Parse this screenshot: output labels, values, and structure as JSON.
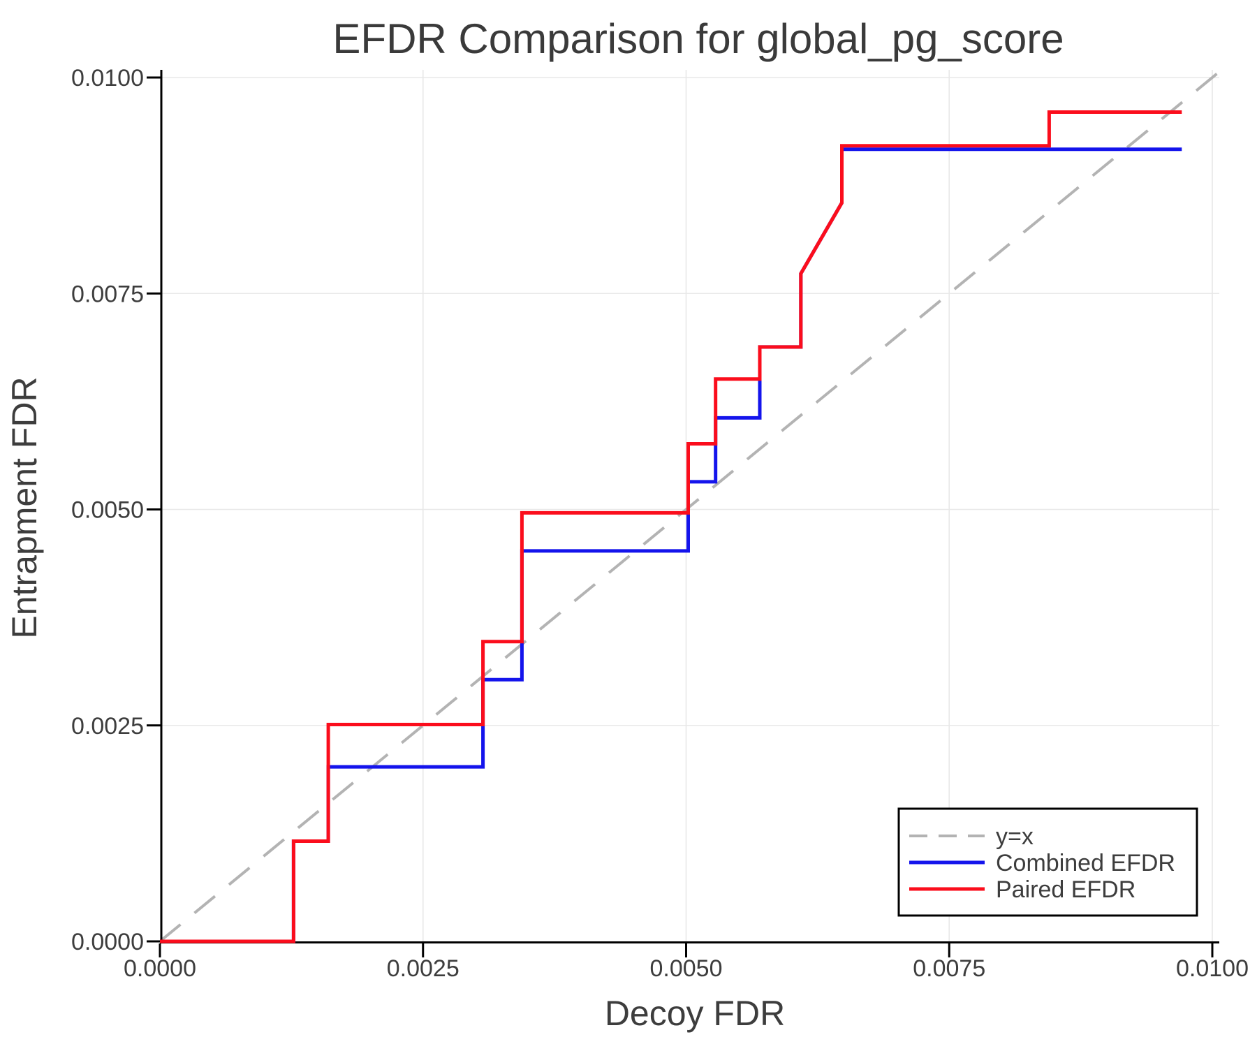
{
  "chart_data": {
    "type": "line",
    "title": "EFDR Comparison for global_pg_score",
    "xlabel": "Decoy FDR",
    "ylabel": "Entrapment FDR",
    "xlim": [
      0.0,
      0.01
    ],
    "ylim": [
      0.0,
      0.01
    ],
    "grid": true,
    "legend_position": "lower right",
    "xticks": [
      {
        "value": 0.0,
        "label": "0.0000"
      },
      {
        "value": 0.0025,
        "label": "0.0025"
      },
      {
        "value": 0.005,
        "label": "0.0050"
      },
      {
        "value": 0.0075,
        "label": "0.0075"
      },
      {
        "value": 0.01,
        "label": "0.0100"
      }
    ],
    "yticks": [
      {
        "value": 0.0,
        "label": "0.0000"
      },
      {
        "value": 0.0025,
        "label": "0.0025"
      },
      {
        "value": 0.005,
        "label": "0.0050"
      },
      {
        "value": 0.0075,
        "label": "0.0075"
      },
      {
        "value": 0.01,
        "label": "0.0100"
      }
    ],
    "identity_line": {
      "name": "y=x",
      "color": "#b3b3b3",
      "style": "dashed",
      "points": [
        [
          0.0,
          0.0
        ],
        [
          0.0101,
          0.0101
        ]
      ]
    },
    "series": [
      {
        "name": "Combined EFDR",
        "color": "#1414ec",
        "style": "solid",
        "points": [
          [
            0.0,
            0.0
          ],
          [
            0.00127,
            0.0
          ],
          [
            0.00127,
            0.00116
          ],
          [
            0.0016,
            0.00116
          ],
          [
            0.0016,
            0.00202
          ],
          [
            0.00307,
            0.00202
          ],
          [
            0.00307,
            0.00303
          ],
          [
            0.00344,
            0.00303
          ],
          [
            0.00344,
            0.00452
          ],
          [
            0.00502,
            0.00452
          ],
          [
            0.00502,
            0.00532
          ],
          [
            0.00528,
            0.00532
          ],
          [
            0.00528,
            0.00606
          ],
          [
            0.0057,
            0.00606
          ],
          [
            0.0057,
            0.00688
          ],
          [
            0.00609,
            0.00688
          ],
          [
            0.00609,
            0.00773
          ],
          [
            0.00648,
            0.00855
          ],
          [
            0.00648,
            0.00917
          ],
          [
            0.00971,
            0.00917
          ]
        ]
      },
      {
        "name": "Paired EFDR",
        "color": "#fb0d1c",
        "style": "solid",
        "points": [
          [
            0.0,
            0.0
          ],
          [
            0.00127,
            0.0
          ],
          [
            0.00127,
            0.00116
          ],
          [
            0.0016,
            0.00116
          ],
          [
            0.0016,
            0.00251
          ],
          [
            0.00307,
            0.00251
          ],
          [
            0.00307,
            0.00347
          ],
          [
            0.00344,
            0.00347
          ],
          [
            0.00344,
            0.00496
          ],
          [
            0.00502,
            0.00496
          ],
          [
            0.00502,
            0.00576
          ],
          [
            0.00528,
            0.00576
          ],
          [
            0.00528,
            0.00651
          ],
          [
            0.0057,
            0.00651
          ],
          [
            0.0057,
            0.00688
          ],
          [
            0.00609,
            0.00688
          ],
          [
            0.00609,
            0.00773
          ],
          [
            0.00648,
            0.00855
          ],
          [
            0.00648,
            0.00921
          ],
          [
            0.00845,
            0.00921
          ],
          [
            0.00845,
            0.0096
          ],
          [
            0.00971,
            0.0096
          ]
        ]
      }
    ]
  },
  "legend": {
    "items": [
      {
        "label": "y=x",
        "color": "#b3b3b3",
        "style": "dashed"
      },
      {
        "label": "Combined EFDR",
        "color": "#1414ec",
        "style": "solid"
      },
      {
        "label": "Paired EFDR",
        "color": "#fb0d1c",
        "style": "solid"
      }
    ]
  },
  "colors": {
    "grid": "#e8e8e8",
    "spine": "#000000",
    "text": "#3d3d3d",
    "background": "#ffffff"
  }
}
